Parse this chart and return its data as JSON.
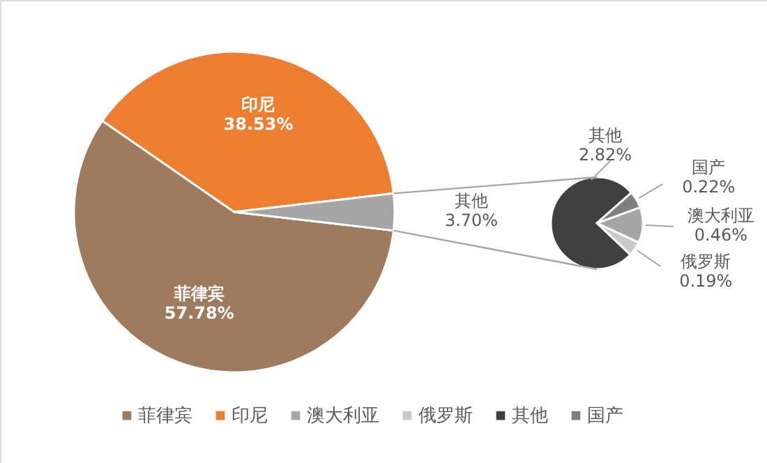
{
  "chart_data": [
    {
      "type": "pie",
      "categories": [
        "菲律宾",
        "印尼",
        "其他"
      ],
      "values": [
        57.78,
        38.53,
        3.7
      ],
      "value_labels": [
        "57.78%",
        "38.53%",
        "3.70%"
      ],
      "colors": [
        "#9e7a5f",
        "#ed7d31",
        "#a5a5a5"
      ],
      "legend": "bottom"
    },
    {
      "type": "pie",
      "categories": [
        "澳大利亚",
        "俄罗斯",
        "其他",
        "国产"
      ],
      "values": [
        0.46,
        0.19,
        2.82,
        0.22
      ],
      "value_labels": [
        "0.46%",
        "0.19%",
        "2.82%",
        "0.22%"
      ],
      "colors": [
        "#a5a5a5",
        "#c9c9c9",
        "#404040",
        "#7f7f7f"
      ],
      "legend": "bottom"
    }
  ]
}
